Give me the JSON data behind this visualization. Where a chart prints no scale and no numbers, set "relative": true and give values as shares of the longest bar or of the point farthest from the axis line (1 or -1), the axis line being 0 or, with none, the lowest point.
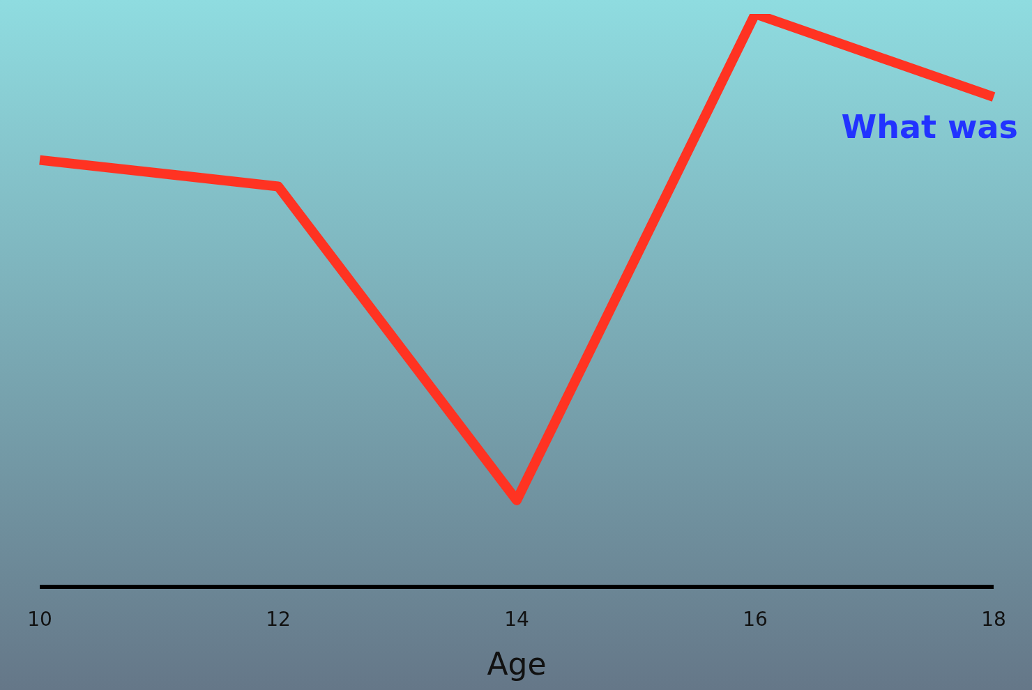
{
  "chart_data": {
    "type": "line",
    "xlabel": "Age",
    "categories": [
      "10",
      "12",
      "14",
      "16",
      "18"
    ],
    "relative": true,
    "series": [
      {
        "color": "#ff3322",
        "values": [
          0.745,
          0.699,
          0.151,
          1,
          0.855
        ]
      }
    ],
    "annotations": [
      "What was"
    ]
  }
}
